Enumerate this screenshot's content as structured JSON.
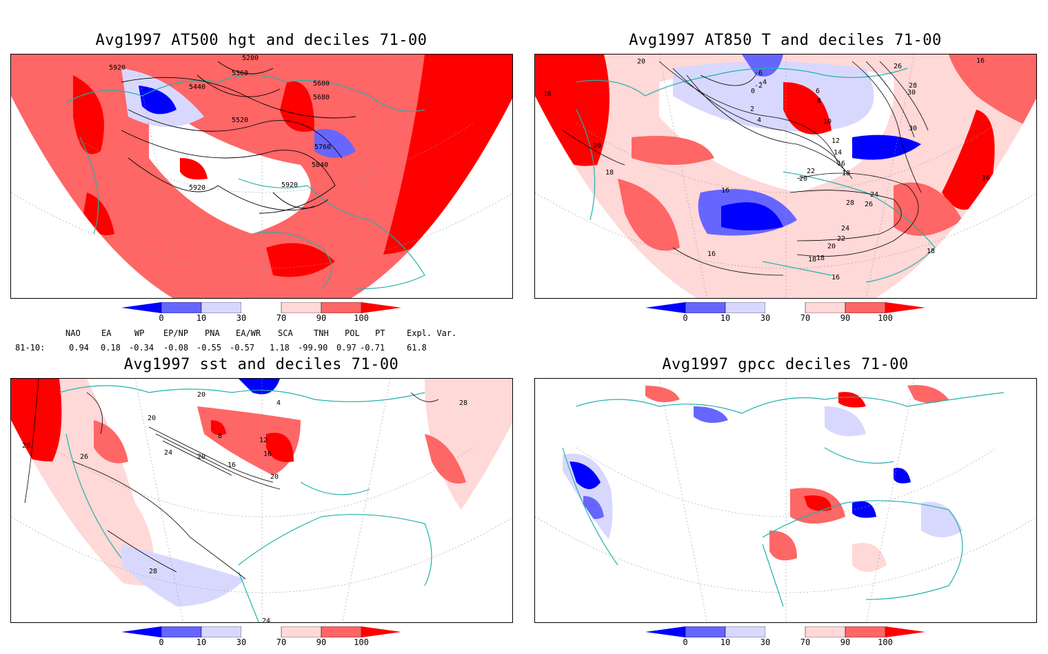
{
  "panels": [
    {
      "title": "Avg1997 AT500 hgt and deciles 71-00",
      "contour_labels": [
        "5280",
        "5360",
        "5920",
        "5440",
        "5600",
        "5680",
        "5520",
        "5760",
        "5840",
        "5920",
        "5920"
      ]
    },
    {
      "title": "Avg1997 AT850 T and deciles 71-00",
      "contour_labels": [
        "20",
        "-6",
        "-4",
        "-2",
        "0",
        "6",
        "8",
        "2",
        "4",
        "10",
        "12",
        "14",
        "16",
        "18",
        "16",
        "20",
        "22",
        "24",
        "22",
        "20",
        "18",
        "16",
        "16",
        "18",
        "26",
        "24",
        "28",
        "30",
        "30",
        "16",
        "20",
        "16",
        "18",
        "16",
        "28",
        "26",
        "18"
      ]
    },
    {
      "title": "Avg1997 sst and deciles 71-00",
      "contour_labels": [
        "20",
        "4",
        "28",
        "26",
        "24",
        "20",
        "16",
        "8",
        "12",
        "16",
        "20",
        "20",
        "28",
        "24",
        "28"
      ]
    },
    {
      "title": "Avg1997 gpcc deciles 71-00",
      "contour_labels": []
    }
  ],
  "colorbar": {
    "labels": [
      "0",
      "10",
      "30",
      "70",
      "90",
      "100"
    ],
    "colors": [
      "#0000ff",
      "#6666ff",
      "#d8d8ff",
      "#ffffff",
      "#ffd8d8",
      "#ff6666",
      "#ff0000"
    ]
  },
  "indices": {
    "headers": [
      "NAO",
      "EA",
      "WP",
      "EP/NP",
      "PNA",
      "EA/WR",
      "SCA",
      "TNH",
      "POL",
      "PT",
      "Expl. Var."
    ],
    "row_label": "81-10:",
    "values": [
      "0.94",
      "0.18",
      "-0.34",
      "-0.08",
      "-0.55",
      "-0.57",
      "1.18",
      "-99.90",
      "0.97",
      "-0.71",
      "61.8"
    ]
  },
  "colors": {
    "coast": "#20b2aa",
    "contour": "#000000",
    "grid": "#999999"
  }
}
